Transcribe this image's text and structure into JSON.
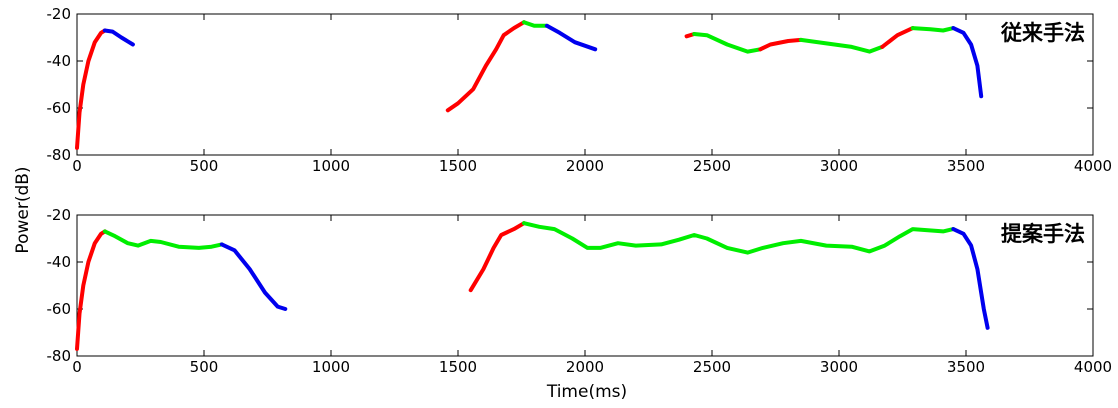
{
  "chart_data": {
    "type": "line",
    "ylabel": "Power(dB)",
    "xlabel": "Time(ms)",
    "colors": {
      "red": "#ff0000",
      "green": "#00ee00",
      "blue": "#0000ee"
    },
    "panels": [
      {
        "label": "従来手法",
        "xlim": [
          0,
          4000
        ],
        "ylim": [
          -80,
          -20
        ],
        "xticks": [
          0,
          500,
          1000,
          1500,
          2000,
          2500,
          3000,
          3500,
          4000
        ],
        "yticks": [
          -80,
          -60,
          -40,
          -20
        ],
        "segments": [
          {
            "color": "red",
            "points": [
              [
                0,
                -77
              ],
              [
                10,
                -62
              ],
              [
                25,
                -50
              ],
              [
                45,
                -40
              ],
              [
                70,
                -32
              ],
              [
                95,
                -28
              ],
              [
                110,
                -27
              ]
            ]
          },
          {
            "color": "blue",
            "points": [
              [
                110,
                -27
              ],
              [
                140,
                -27.5
              ],
              [
                175,
                -30
              ],
              [
                220,
                -33
              ]
            ]
          },
          {
            "color": "red",
            "points": [
              [
                1460,
                -61
              ],
              [
                1500,
                -58
              ],
              [
                1560,
                -52
              ],
              [
                1610,
                -42
              ],
              [
                1650,
                -35
              ],
              [
                1680,
                -29
              ],
              [
                1720,
                -26
              ],
              [
                1760,
                -23.5
              ]
            ]
          },
          {
            "color": "green",
            "points": [
              [
                1760,
                -23.5
              ],
              [
                1800,
                -25
              ],
              [
                1850,
                -25
              ]
            ]
          },
          {
            "color": "blue",
            "points": [
              [
                1850,
                -25
              ],
              [
                1900,
                -28
              ],
              [
                1960,
                -32
              ],
              [
                2040,
                -35
              ]
            ]
          },
          {
            "color": "red",
            "points": [
              [
                2400,
                -29.5
              ],
              [
                2430,
                -28.5
              ]
            ]
          },
          {
            "color": "green",
            "points": [
              [
                2430,
                -28.5
              ],
              [
                2480,
                -29
              ],
              [
                2560,
                -33
              ],
              [
                2640,
                -36
              ],
              [
                2690,
                -35
              ]
            ]
          },
          {
            "color": "red",
            "points": [
              [
                2690,
                -35
              ],
              [
                2730,
                -33
              ],
              [
                2800,
                -31.5
              ],
              [
                2850,
                -31
              ]
            ]
          },
          {
            "color": "green",
            "points": [
              [
                2850,
                -31
              ],
              [
                2950,
                -32.5
              ],
              [
                3050,
                -34
              ],
              [
                3120,
                -36
              ],
              [
                3170,
                -34
              ]
            ]
          },
          {
            "color": "red",
            "points": [
              [
                3170,
                -34
              ],
              [
                3230,
                -29
              ],
              [
                3290,
                -26
              ]
            ]
          },
          {
            "color": "green",
            "points": [
              [
                3290,
                -26
              ],
              [
                3360,
                -26.5
              ],
              [
                3410,
                -27
              ],
              [
                3450,
                -26
              ]
            ]
          },
          {
            "color": "blue",
            "points": [
              [
                3450,
                -26
              ],
              [
                3490,
                -28
              ],
              [
                3520,
                -33
              ],
              [
                3545,
                -42
              ],
              [
                3560,
                -55
              ]
            ]
          }
        ]
      },
      {
        "label": "提案手法",
        "xlim": [
          0,
          4000
        ],
        "ylim": [
          -80,
          -20
        ],
        "xticks": [
          0,
          500,
          1000,
          1500,
          2000,
          2500,
          3000,
          3500,
          4000
        ],
        "yticks": [
          -80,
          -60,
          -40,
          -20
        ],
        "segments": [
          {
            "color": "red",
            "points": [
              [
                0,
                -77
              ],
              [
                10,
                -62
              ],
              [
                25,
                -50
              ],
              [
                45,
                -40
              ],
              [
                70,
                -32
              ],
              [
                95,
                -28
              ],
              [
                110,
                -27
              ]
            ]
          },
          {
            "color": "green",
            "points": [
              [
                110,
                -27
              ],
              [
                150,
                -29
              ],
              [
                200,
                -32
              ],
              [
                240,
                -33
              ],
              [
                290,
                -31
              ],
              [
                330,
                -31.5
              ],
              [
                400,
                -33.5
              ],
              [
                480,
                -34
              ],
              [
                530,
                -33.5
              ],
              [
                570,
                -32.5
              ]
            ]
          },
          {
            "color": "blue",
            "points": [
              [
                570,
                -32.5
              ],
              [
                620,
                -35
              ],
              [
                680,
                -43
              ],
              [
                740,
                -53
              ],
              [
                790,
                -59
              ],
              [
                820,
                -60
              ]
            ]
          },
          {
            "color": "red",
            "points": [
              [
                1550,
                -52
              ],
              [
                1600,
                -43
              ],
              [
                1640,
                -34
              ],
              [
                1670,
                -28.5
              ],
              [
                1720,
                -26
              ],
              [
                1760,
                -23.5
              ]
            ]
          },
          {
            "color": "green",
            "points": [
              [
                1760,
                -23.5
              ],
              [
                1820,
                -25
              ],
              [
                1880,
                -26
              ],
              [
                1950,
                -30
              ],
              [
                2010,
                -34
              ],
              [
                2060,
                -34
              ],
              [
                2130,
                -32
              ],
              [
                2200,
                -33
              ],
              [
                2300,
                -32.5
              ],
              [
                2370,
                -30.5
              ],
              [
                2430,
                -28.5
              ],
              [
                2480,
                -30
              ],
              [
                2560,
                -34
              ],
              [
                2640,
                -36
              ],
              [
                2700,
                -34
              ],
              [
                2780,
                -32
              ],
              [
                2850,
                -31
              ],
              [
                2950,
                -33
              ],
              [
                3050,
                -33.5
              ],
              [
                3120,
                -35.5
              ],
              [
                3180,
                -33
              ],
              [
                3240,
                -29
              ],
              [
                3290,
                -26
              ],
              [
                3350,
                -26.5
              ],
              [
                3410,
                -27
              ],
              [
                3450,
                -26
              ]
            ]
          },
          {
            "color": "blue",
            "points": [
              [
                3450,
                -26
              ],
              [
                3490,
                -28
              ],
              [
                3520,
                -33
              ],
              [
                3545,
                -43
              ],
              [
                3570,
                -60
              ],
              [
                3585,
                -68
              ]
            ]
          }
        ]
      }
    ]
  }
}
